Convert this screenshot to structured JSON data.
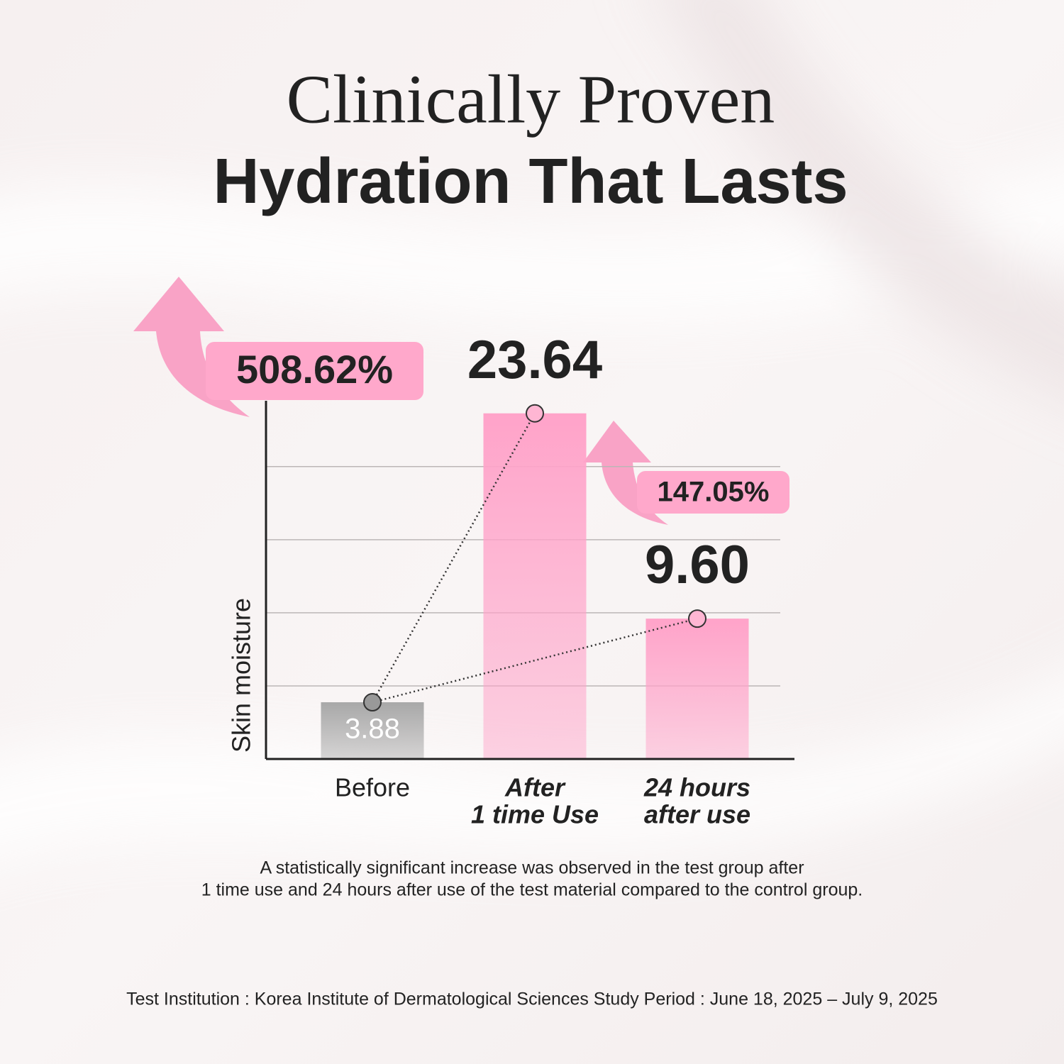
{
  "chart_data": {
    "type": "bar",
    "title": [
      "Clinically Proven",
      "Hydration That Lasts"
    ],
    "y_label": "Skin moisture",
    "categories": [
      [
        "Before"
      ],
      [
        "After",
        "1 time Use"
      ],
      [
        "24 hours",
        "after use"
      ]
    ],
    "values": [
      3.88,
      23.64,
      9.6
    ],
    "value_labels": [
      "3.88",
      "23.64",
      "9.60"
    ],
    "colors": [
      "#a8a8a8",
      "#ffa3c9",
      "#ffa3c9"
    ],
    "annotations": [
      "508.62%",
      "147.05%"
    ],
    "annotation_color": "#ffa8cb",
    "ylim": [
      0,
      24.5
    ],
    "yticks": [
      5,
      10,
      15,
      20
    ],
    "grid": true,
    "note": [
      "A statistically significant increase was observed in the test group after",
      "1 time use and 24 hours after use of the test material compared to the control group."
    ],
    "source": "Test Institution : Korea Institute of Dermatological Sciences Study Period : June 18, 2025 – July 9, 2025"
  }
}
